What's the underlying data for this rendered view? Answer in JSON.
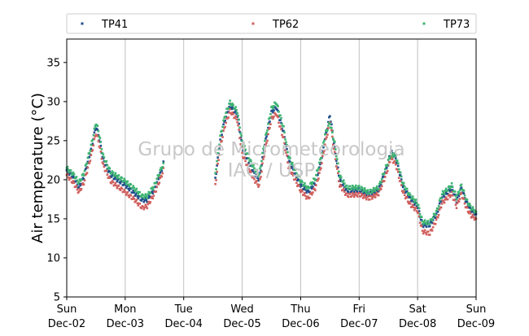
{
  "chart_data": {
    "type": "scatter",
    "title": "",
    "xlabel": "",
    "ylabel": "Air temperature (°C)",
    "xlim": [
      "2018-12-02T00:00",
      "2018-12-09T00:00"
    ],
    "ylim": [
      5,
      38
    ],
    "yticks": [
      5,
      10,
      15,
      20,
      25,
      30,
      35
    ],
    "xticks": [
      {
        "value": "2018-12-02",
        "line1": "Sun",
        "line2": "Dec-02"
      },
      {
        "value": "2018-12-03",
        "line1": "Mon",
        "line2": "Dec-03"
      },
      {
        "value": "2018-12-04",
        "line1": "Tue",
        "line2": "Dec-04"
      },
      {
        "value": "2018-12-05",
        "line1": "Wed",
        "line2": "Dec-05"
      },
      {
        "value": "2018-12-06",
        "line1": "Thu",
        "line2": "Dec-06"
      },
      {
        "value": "2018-12-07",
        "line1": "Fri",
        "line2": "Dec-07"
      },
      {
        "value": "2018-12-08",
        "line1": "Sat",
        "line2": "Dec-08"
      },
      {
        "value": "2018-12-09",
        "line1": "Sun",
        "line2": "Dec-09"
      }
    ],
    "grid": "vertical lines at each day",
    "legend_position": "top, above plot",
    "watermark": [
      "Grupo de Micrometeorologia",
      "IAG / USP"
    ],
    "series": [
      {
        "name": "TP41",
        "color": "#1f4e8c",
        "points": [
          [
            "2018-12-02T00:00",
            21.2
          ],
          [
            "2018-12-02T03:00",
            20.2
          ],
          [
            "2018-12-02T05:00",
            19.0
          ],
          [
            "2018-12-02T07:00",
            20.3
          ],
          [
            "2018-12-02T10:00",
            23.8
          ],
          [
            "2018-12-02T12:00",
            26.8
          ],
          [
            "2018-12-02T13:00",
            25.8
          ],
          [
            "2018-12-02T15:00",
            22.5
          ],
          [
            "2018-12-02T18:00",
            20.6
          ],
          [
            "2018-12-03T00:00",
            19.3
          ],
          [
            "2018-12-03T04:00",
            18.2
          ],
          [
            "2018-12-03T07:00",
            17.4
          ],
          [
            "2018-12-03T09:00",
            17.4
          ],
          [
            "2018-12-03T12:00",
            18.8
          ],
          [
            "2018-12-03T15:00",
            21.3
          ],
          [
            "2018-12-03T16:00",
            22.5
          ],
          [
            "2018-12-04T13:00",
            20.2
          ],
          [
            "2018-12-04T15:00",
            25.0
          ],
          [
            "2018-12-04T17:00",
            27.8
          ],
          [
            "2018-12-04T19:00",
            29.5
          ],
          [
            "2018-12-04T22:00",
            28.3
          ],
          [
            "2018-12-05T00:00",
            24.2
          ],
          [
            "2018-12-05T03:00",
            22.0
          ],
          [
            "2018-12-05T05:00",
            20.8
          ],
          [
            "2018-12-05T07:00",
            20.0
          ],
          [
            "2018-12-05T09:00",
            24.0
          ],
          [
            "2018-12-05T12:00",
            28.6
          ],
          [
            "2018-12-05T14:00",
            29.3
          ],
          [
            "2018-12-05T17:00",
            26.0
          ],
          [
            "2018-12-05T19:00",
            22.5
          ],
          [
            "2018-12-06T00:00",
            19.3
          ],
          [
            "2018-12-06T03:00",
            18.4
          ],
          [
            "2018-12-06T06:00",
            19.6
          ],
          [
            "2018-12-06T08:00",
            21.8
          ],
          [
            "2018-12-06T10:00",
            25.2
          ],
          [
            "2018-12-06T12:00",
            28.3
          ],
          [
            "2018-12-06T14:00",
            24.0
          ],
          [
            "2018-12-06T16:00",
            20.0
          ],
          [
            "2018-12-06T19:00",
            18.6
          ],
          [
            "2018-12-07T00:00",
            18.7
          ],
          [
            "2018-12-07T04:00",
            18.1
          ],
          [
            "2018-12-07T08:00",
            18.7
          ],
          [
            "2018-12-07T11:00",
            21.2
          ],
          [
            "2018-12-07T13:00",
            23.6
          ],
          [
            "2018-12-07T15:00",
            22.8
          ],
          [
            "2018-12-07T18:00",
            19.1
          ],
          [
            "2018-12-07T21:00",
            17.6
          ],
          [
            "2018-12-08T00:00",
            16.6
          ],
          [
            "2018-12-08T02:00",
            14.2
          ],
          [
            "2018-12-08T05:00",
            14.2
          ],
          [
            "2018-12-08T08:00",
            15.7
          ],
          [
            "2018-12-08T10:00",
            17.8
          ],
          [
            "2018-12-08T12:00",
            18.3
          ],
          [
            "2018-12-08T14:00",
            18.9
          ],
          [
            "2018-12-08T16:00",
            17.3
          ],
          [
            "2018-12-08T18:00",
            18.9
          ],
          [
            "2018-12-08T20:00",
            17.1
          ],
          [
            "2018-12-08T22:00",
            16.1
          ],
          [
            "2018-12-09T00:00",
            15.6
          ]
        ]
      },
      {
        "name": "TP62",
        "color": "#d0605e",
        "points": [
          [
            "2018-12-02T00:00",
            20.6
          ],
          [
            "2018-12-02T03:00",
            19.5
          ],
          [
            "2018-12-02T05:00",
            18.4
          ],
          [
            "2018-12-02T07:00",
            19.6
          ],
          [
            "2018-12-02T10:00",
            23.0
          ],
          [
            "2018-12-02T12:00",
            26.0
          ],
          [
            "2018-12-02T13:00",
            25.0
          ],
          [
            "2018-12-02T15:00",
            21.8
          ],
          [
            "2018-12-02T18:00",
            19.8
          ],
          [
            "2018-12-03T00:00",
            18.4
          ],
          [
            "2018-12-03T04:00",
            17.4
          ],
          [
            "2018-12-03T07:00",
            16.4
          ],
          [
            "2018-12-03T09:00",
            16.6
          ],
          [
            "2018-12-03T12:00",
            18.2
          ],
          [
            "2018-12-03T15:00",
            20.6
          ],
          [
            "2018-12-03T16:00",
            21.6
          ],
          [
            "2018-12-04T13:00",
            19.4
          ],
          [
            "2018-12-04T15:00",
            24.2
          ],
          [
            "2018-12-04T17:00",
            27.0
          ],
          [
            "2018-12-04T19:00",
            28.8
          ],
          [
            "2018-12-04T22:00",
            27.6
          ],
          [
            "2018-12-05T00:00",
            23.3
          ],
          [
            "2018-12-05T03:00",
            21.2
          ],
          [
            "2018-12-05T05:00",
            20.0
          ],
          [
            "2018-12-05T07:00",
            19.2
          ],
          [
            "2018-12-05T09:00",
            23.2
          ],
          [
            "2018-12-05T12:00",
            27.8
          ],
          [
            "2018-12-05T14:00",
            28.5
          ],
          [
            "2018-12-05T17:00",
            25.2
          ],
          [
            "2018-12-05T19:00",
            21.7
          ],
          [
            "2018-12-06T00:00",
            18.6
          ],
          [
            "2018-12-06T03:00",
            17.6
          ],
          [
            "2018-12-06T06:00",
            18.9
          ],
          [
            "2018-12-06T08:00",
            21.1
          ],
          [
            "2018-12-06T10:00",
            24.5
          ],
          [
            "2018-12-06T12:00",
            27.5
          ],
          [
            "2018-12-06T14:00",
            23.3
          ],
          [
            "2018-12-06T16:00",
            19.3
          ],
          [
            "2018-12-06T19:00",
            18.0
          ],
          [
            "2018-12-07T00:00",
            18.1
          ],
          [
            "2018-12-07T04:00",
            17.6
          ],
          [
            "2018-12-07T08:00",
            18.2
          ],
          [
            "2018-12-07T11:00",
            20.6
          ],
          [
            "2018-12-07T13:00",
            22.8
          ],
          [
            "2018-12-07T15:00",
            22.0
          ],
          [
            "2018-12-07T18:00",
            18.4
          ],
          [
            "2018-12-07T21:00",
            16.8
          ],
          [
            "2018-12-08T00:00",
            16.0
          ],
          [
            "2018-12-08T02:00",
            13.4
          ],
          [
            "2018-12-08T05:00",
            13.1
          ],
          [
            "2018-12-08T08:00",
            15.0
          ],
          [
            "2018-12-08T10:00",
            17.0
          ],
          [
            "2018-12-08T12:00",
            17.6
          ],
          [
            "2018-12-08T14:00",
            18.2
          ],
          [
            "2018-12-08T16:00",
            16.6
          ],
          [
            "2018-12-08T18:00",
            18.2
          ],
          [
            "2018-12-08T20:00",
            16.4
          ],
          [
            "2018-12-08T22:00",
            15.4
          ],
          [
            "2018-12-09T00:00",
            15.0
          ]
        ]
      },
      {
        "name": "TP73",
        "color": "#3cb371",
        "points": [
          [
            "2018-12-02T00:00",
            21.5
          ],
          [
            "2018-12-02T03:00",
            20.6
          ],
          [
            "2018-12-02T05:00",
            19.6
          ],
          [
            "2018-12-02T07:00",
            20.8
          ],
          [
            "2018-12-02T10:00",
            24.3
          ],
          [
            "2018-12-02T12:00",
            27.3
          ],
          [
            "2018-12-02T13:00",
            26.3
          ],
          [
            "2018-12-02T15:00",
            23.0
          ],
          [
            "2018-12-02T18:00",
            21.0
          ],
          [
            "2018-12-03T00:00",
            19.8
          ],
          [
            "2018-12-03T04:00",
            18.8
          ],
          [
            "2018-12-03T07:00",
            17.9
          ],
          [
            "2018-12-03T09:00",
            17.9
          ],
          [
            "2018-12-03T12:00",
            19.3
          ],
          [
            "2018-12-03T15:00",
            21.6
          ],
          [
            "2018-12-03T16:00",
            22.0
          ],
          [
            "2018-12-04T13:00",
            20.8
          ],
          [
            "2018-12-04T15:00",
            25.5
          ],
          [
            "2018-12-04T17:00",
            28.3
          ],
          [
            "2018-12-04T19:00",
            29.9
          ],
          [
            "2018-12-04T22:00",
            28.8
          ],
          [
            "2018-12-05T00:00",
            24.8
          ],
          [
            "2018-12-05T03:00",
            22.6
          ],
          [
            "2018-12-05T05:00",
            21.4
          ],
          [
            "2018-12-05T07:00",
            20.6
          ],
          [
            "2018-12-05T09:00",
            24.5
          ],
          [
            "2018-12-05T12:00",
            29.1
          ],
          [
            "2018-12-05T14:00",
            29.9
          ],
          [
            "2018-12-05T17:00",
            26.6
          ],
          [
            "2018-12-05T19:00",
            23.0
          ],
          [
            "2018-12-06T00:00",
            19.8
          ],
          [
            "2018-12-06T03:00",
            18.9
          ],
          [
            "2018-12-06T06:00",
            20.2
          ],
          [
            "2018-12-06T08:00",
            22.4
          ],
          [
            "2018-12-06T10:00",
            25.8
          ],
          [
            "2018-12-06T12:00",
            27.3
          ],
          [
            "2018-12-06T14:00",
            24.6
          ],
          [
            "2018-12-06T16:00",
            20.5
          ],
          [
            "2018-12-06T19:00",
            19.0
          ],
          [
            "2018-12-07T00:00",
            19.0
          ],
          [
            "2018-12-07T04:00",
            18.4
          ],
          [
            "2018-12-07T08:00",
            19.0
          ],
          [
            "2018-12-07T11:00",
            21.6
          ],
          [
            "2018-12-07T13:00",
            23.2
          ],
          [
            "2018-12-07T15:00",
            23.1
          ],
          [
            "2018-12-07T18:00",
            19.5
          ],
          [
            "2018-12-07T21:00",
            17.9
          ],
          [
            "2018-12-08T00:00",
            17.0
          ],
          [
            "2018-12-08T02:00",
            14.6
          ],
          [
            "2018-12-08T05:00",
            14.5
          ],
          [
            "2018-12-08T08:00",
            16.1
          ],
          [
            "2018-12-08T10:00",
            18.2
          ],
          [
            "2018-12-08T12:00",
            18.7
          ],
          [
            "2018-12-08T14:00",
            19.3
          ],
          [
            "2018-12-08T16:00",
            17.7
          ],
          [
            "2018-12-08T18:00",
            19.3
          ],
          [
            "2018-12-08T20:00",
            17.4
          ],
          [
            "2018-12-08T22:00",
            16.4
          ],
          [
            "2018-12-09T00:00",
            15.9
          ]
        ]
      }
    ]
  }
}
